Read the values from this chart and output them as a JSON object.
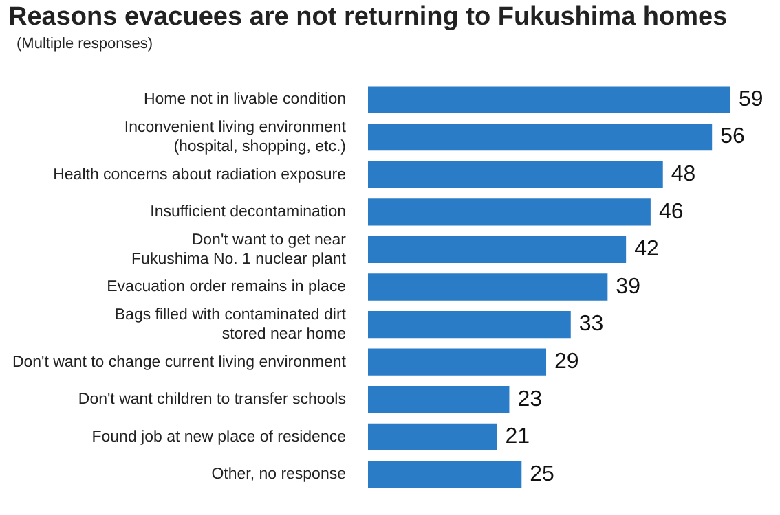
{
  "chart_data": {
    "type": "bar",
    "orientation": "horizontal",
    "title": "Reasons evacuees are not returning to Fukushima homes",
    "subtitle": "(Multiple responses)",
    "categories": [
      "Home not in livable condition",
      "Inconvenient living environment\n(hospital, shopping, etc.)",
      "Health concerns about radiation exposure",
      "Insufficient decontamination",
      "Don't want to get near\nFukushima No. 1 nuclear plant",
      "Evacuation order remains in place",
      "Bags filled with contaminated dirt\nstored near home",
      "Don't want to change current living environment",
      "Don't want children to transfer schools",
      "Found job at new place of residence",
      "Other, no response"
    ],
    "values": [
      59,
      56,
      48,
      46,
      42,
      39,
      33,
      29,
      23,
      21,
      25
    ],
    "color": "#2a7cc7",
    "data_labels": true,
    "legend": false
  }
}
